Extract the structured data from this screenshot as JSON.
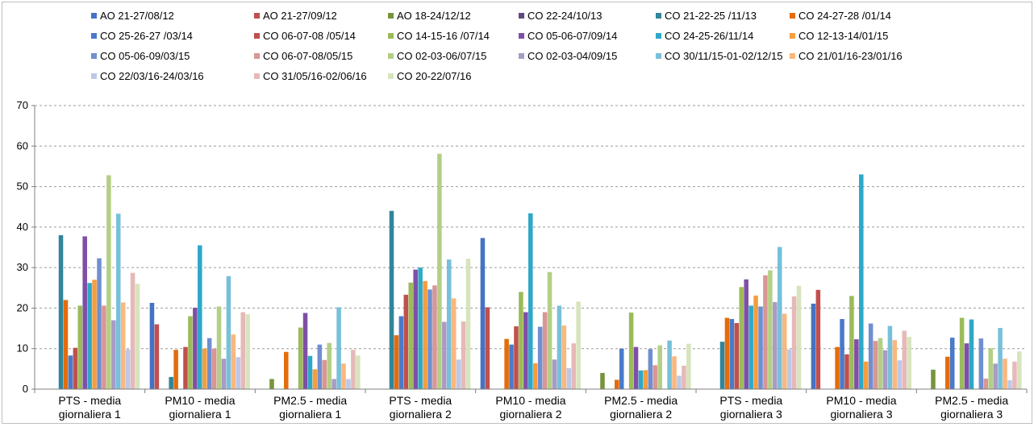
{
  "chart_data": {
    "type": "bar",
    "title": "",
    "xlabel": "",
    "ylabel": "",
    "ylim": [
      0,
      70
    ],
    "yticks": [
      "0",
      "10",
      "20",
      "30",
      "40",
      "50",
      "60",
      "70"
    ],
    "grid": true,
    "legend_position": "top",
    "categories": [
      [
        "PTS - media",
        "giornaliera 1"
      ],
      [
        "PM10 - media",
        "giornaliera 1"
      ],
      [
        "PM2.5 - media",
        "giornaliera 1"
      ],
      [
        "PTS - media",
        "giornaliera 2"
      ],
      [
        "PM10 - media",
        "giornaliera 2"
      ],
      [
        "PM2.5 - media",
        "giornaliera 2"
      ],
      [
        "PTS - media",
        "giornaliera 3"
      ],
      [
        "PM10 - media",
        "giornaliera 3"
      ],
      [
        "PM2.5 - media",
        "giornaliera 3"
      ]
    ],
    "series": [
      {
        "name": "AO 21-27/08/12",
        "color": "#4472c4",
        "values": [
          null,
          21.3,
          null,
          null,
          37.3,
          null,
          null,
          21.1,
          null
        ]
      },
      {
        "name": "AO 21-27/09/12",
        "color": "#c0504d",
        "values": [
          null,
          16,
          null,
          null,
          20.2,
          null,
          null,
          24.5,
          null
        ]
      },
      {
        "name": "AO 18-24/12/12",
        "color": "#77933c",
        "values": [
          null,
          null,
          2.5,
          null,
          null,
          4,
          null,
          null,
          4.8
        ]
      },
      {
        "name": "CO 22-24/10/13",
        "color": "#604a7b",
        "values": [
          null,
          null,
          null,
          null,
          null,
          null,
          null,
          null,
          null
        ]
      },
      {
        "name": "CO 21-22-25 /11/13",
        "color": "#31859c",
        "values": [
          38,
          3,
          null,
          44,
          null,
          null,
          11.7,
          null,
          null
        ]
      },
      {
        "name": "CO 24-27-28 /01/14",
        "color": "#e46c0a",
        "values": [
          22,
          9.7,
          9.2,
          13.3,
          12.4,
          2.3,
          17.6,
          10.4,
          8
        ]
      },
      {
        "name": "CO 25-26-27 /03/14",
        "color": "#4a7ac9",
        "values": [
          8.3,
          null,
          null,
          18,
          11,
          10,
          17.3,
          17.3,
          12.7
        ]
      },
      {
        "name": "CO 06-07-08 /05/14",
        "color": "#c0504d",
        "values": [
          10.2,
          10.4,
          null,
          23.3,
          15.5,
          null,
          16.3,
          8.6,
          null
        ]
      },
      {
        "name": "CO 14-15-16 /07/14",
        "color": "#9bbb59",
        "values": [
          20.6,
          18,
          15.2,
          26.3,
          24,
          18.9,
          25.2,
          23,
          17.6
        ]
      },
      {
        "name": "CO 05-06-07/09/14",
        "color": "#7f4fa6",
        "values": [
          37.7,
          20.1,
          18.8,
          29.5,
          19,
          10.4,
          27.1,
          12.3,
          11.3
        ]
      },
      {
        "name": "CO 24-25-26/11/14",
        "color": "#2ea8c8",
        "values": [
          26.2,
          35.5,
          8.2,
          30,
          43.4,
          4.6,
          20.6,
          53,
          17.2
        ]
      },
      {
        "name": "CO 12-13-14/01/15",
        "color": "#f59d3f",
        "values": [
          27,
          10,
          4.9,
          26.7,
          6.4,
          4.7,
          23.1,
          6.8,
          null
        ]
      },
      {
        "name": "CO 05-06-09/03/15",
        "color": "#6f8fd0",
        "values": [
          32.3,
          12.6,
          11,
          24.6,
          15.4,
          9.9,
          20.4,
          16.2,
          12.5
        ]
      },
      {
        "name": "CO 06-07-08/05/15",
        "color": "#d99694",
        "values": [
          20.6,
          10,
          7.2,
          25.6,
          19,
          5.9,
          28.1,
          11.9,
          2.6
        ]
      },
      {
        "name": "CO 02-03-06/07/15",
        "color": "#b3cf85",
        "values": [
          52.8,
          20.4,
          11.4,
          58.1,
          28.9,
          10.8,
          29.3,
          12.6,
          10.1
        ]
      },
      {
        "name": "CO 02-03-04/09/15",
        "color": "#a89bc5",
        "values": [
          17,
          7.5,
          2.5,
          16.6,
          7.3,
          null,
          21.5,
          9.6,
          6.3
        ]
      },
      {
        "name": "CO 30/11/15-01-02/12/15",
        "color": "#78c0da",
        "values": [
          43.3,
          27.9,
          20.2,
          32,
          20.6,
          12,
          35.1,
          15.6,
          15.1
        ]
      },
      {
        "name": "CO 21/01/16-23/01/16",
        "color": "#fab77e",
        "values": [
          21.4,
          13.5,
          6.3,
          22.4,
          15.7,
          8.1,
          18.6,
          12.1,
          7.5
        ]
      },
      {
        "name": "CO 22/03/16-24/03/16",
        "color": "#bdc8e8",
        "values": [
          9.8,
          7.9,
          2.5,
          7.3,
          5.2,
          3.3,
          9.8,
          7.1,
          2.2
        ]
      },
      {
        "name": "CO 31/05/16-02/06/16",
        "color": "#e6b9b8",
        "values": [
          28.7,
          19,
          9.7,
          16.7,
          11.3,
          5.8,
          22.9,
          14.4,
          6.8
        ]
      },
      {
        "name": "CO 20-22/07/16",
        "color": "#d7e4bd",
        "values": [
          26,
          18.5,
          8.3,
          32.2,
          21.6,
          11.2,
          25.5,
          12.9,
          9.3
        ]
      }
    ]
  }
}
